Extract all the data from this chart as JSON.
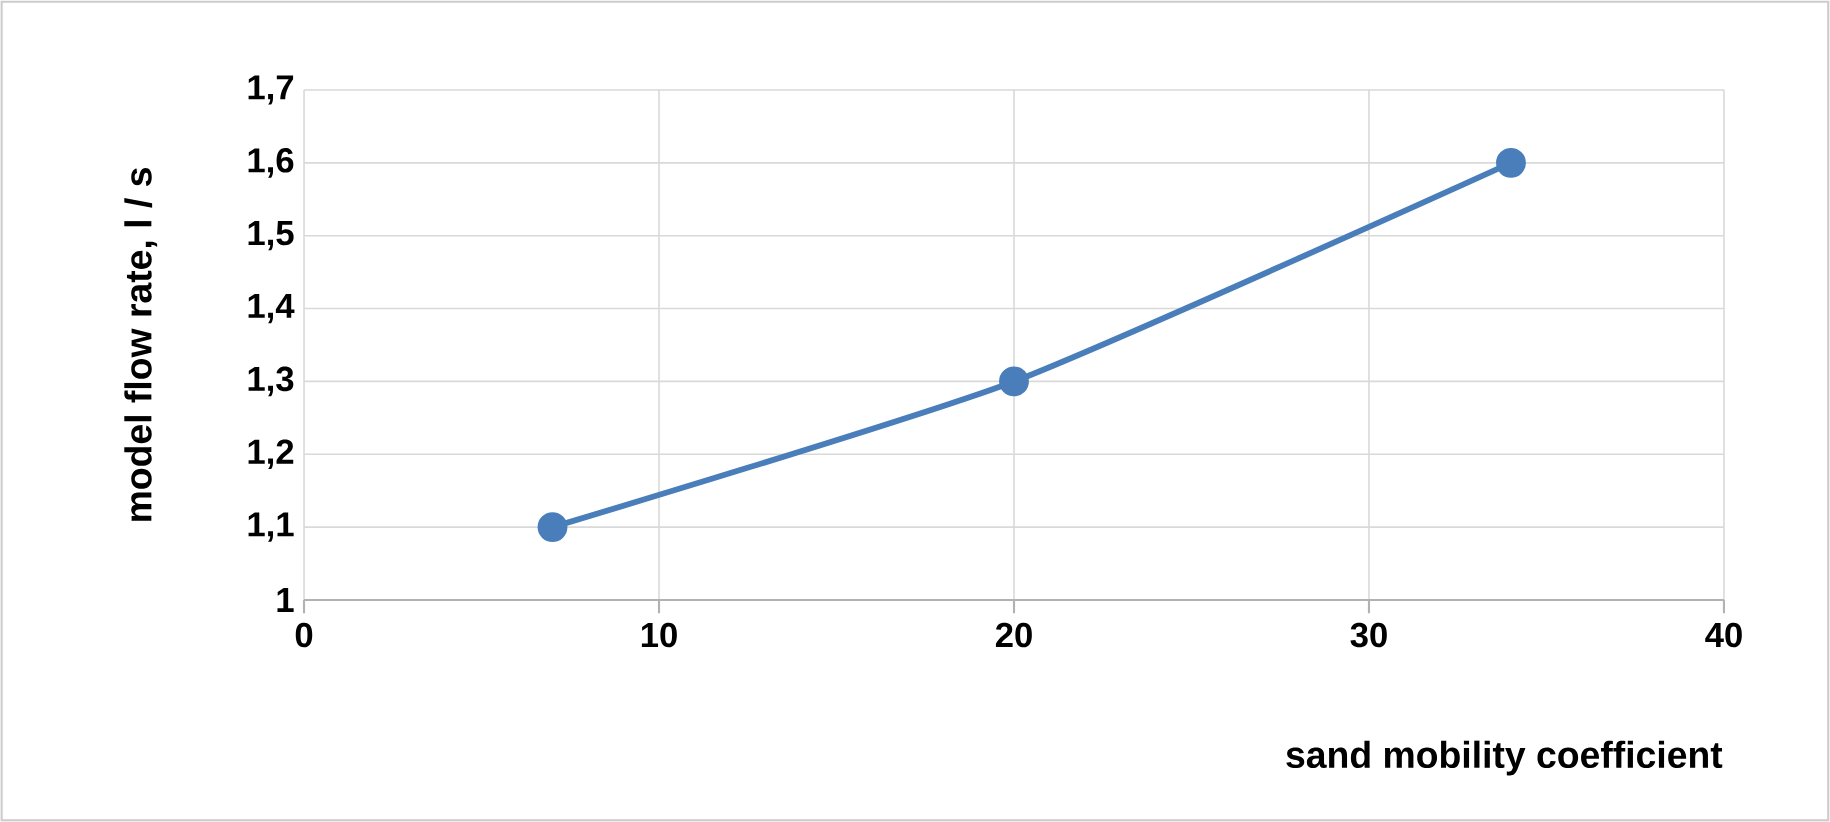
{
  "chart_data": {
    "type": "line",
    "xlabel": "sand mobility coefficient",
    "ylabel": "model flow rate, l / s",
    "x": [
      7,
      20,
      34
    ],
    "series": [
      {
        "color": "#4a7ebb",
        "values": [
          1.1,
          1.3,
          1.6
        ]
      }
    ],
    "xlim": [
      0,
      40
    ],
    "xticks": [
      0,
      10,
      20,
      30,
      40
    ],
    "ylim": [
      1,
      1.7
    ],
    "yticks": [
      1,
      {
        "value": 1.1,
        "label": "1,1"
      },
      {
        "value": 1.2,
        "label": "1,2"
      },
      {
        "value": 1.3,
        "label": "1,3"
      },
      {
        "value": 1.4,
        "label": "1,4"
      },
      {
        "value": 1.5,
        "label": "1,5"
      },
      {
        "value": 1.6,
        "label": "1,6"
      },
      {
        "value": 1.7,
        "label": "1,7"
      }
    ],
    "grid": true,
    "marker": "circle",
    "line_style": "solid"
  }
}
